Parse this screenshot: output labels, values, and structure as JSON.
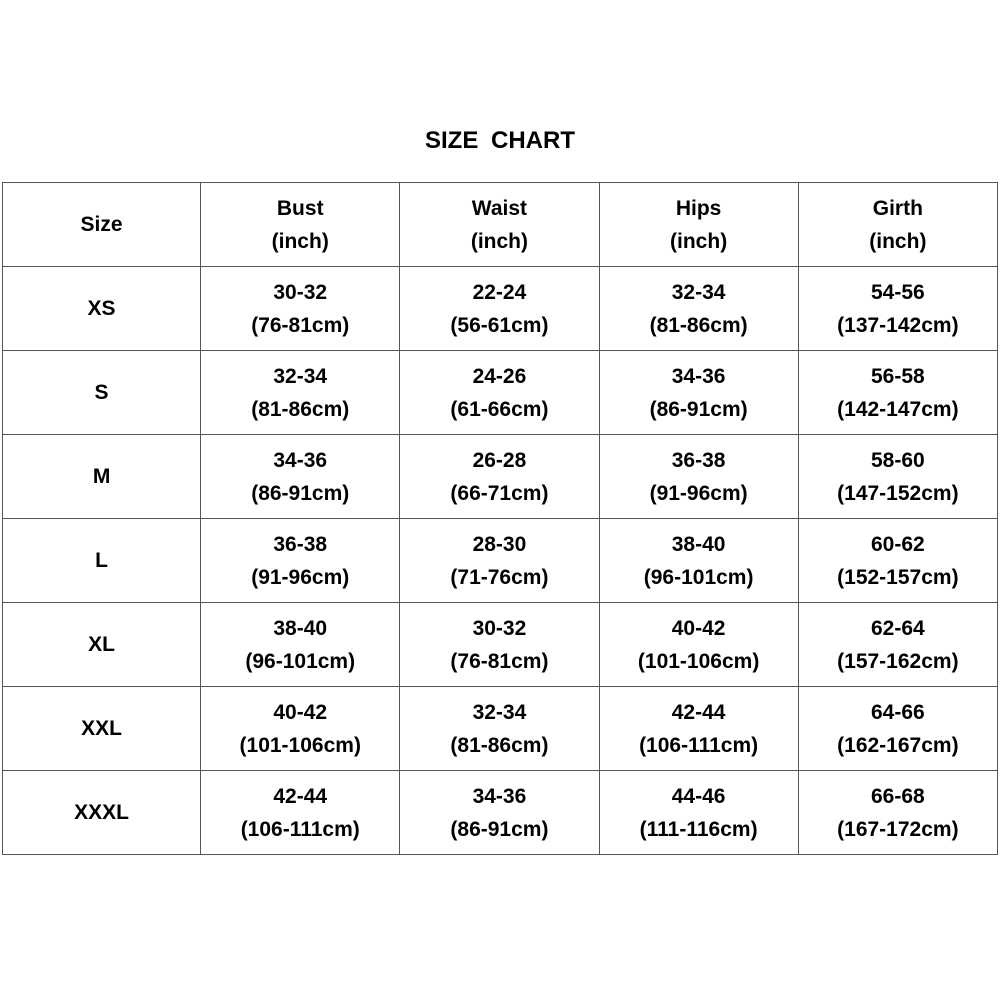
{
  "title": "SIZE  CHART",
  "headers": [
    {
      "name": "Size",
      "unit": ""
    },
    {
      "name": "Bust",
      "unit": "(inch)"
    },
    {
      "name": "Waist",
      "unit": "(inch)"
    },
    {
      "name": "Hips",
      "unit": "(inch)"
    },
    {
      "name": "Girth",
      "unit": "(inch)"
    }
  ],
  "rows": [
    {
      "size": "XS",
      "cells": [
        [
          "30-32",
          "(76-81cm)"
        ],
        [
          "22-24",
          "(56-61cm)"
        ],
        [
          "32-34",
          "(81-86cm)"
        ],
        [
          "54-56",
          "(137-142cm)"
        ]
      ]
    },
    {
      "size": "S",
      "cells": [
        [
          "32-34",
          "(81-86cm)"
        ],
        [
          "24-26",
          "(61-66cm)"
        ],
        [
          "34-36",
          "(86-91cm)"
        ],
        [
          "56-58",
          "(142-147cm)"
        ]
      ]
    },
    {
      "size": "M",
      "cells": [
        [
          "34-36",
          "(86-91cm)"
        ],
        [
          "26-28",
          "(66-71cm)"
        ],
        [
          "36-38",
          "(91-96cm)"
        ],
        [
          "58-60",
          "(147-152cm)"
        ]
      ]
    },
    {
      "size": "L",
      "cells": [
        [
          "36-38",
          "(91-96cm)"
        ],
        [
          "28-30",
          "(71-76cm)"
        ],
        [
          "38-40",
          "(96-101cm)"
        ],
        [
          "60-62",
          "(152-157cm)"
        ]
      ]
    },
    {
      "size": "XL",
      "cells": [
        [
          "38-40",
          "(96-101cm)"
        ],
        [
          "30-32",
          "(76-81cm)"
        ],
        [
          "40-42",
          "(101-106cm)"
        ],
        [
          "62-64",
          "(157-162cm)"
        ]
      ]
    },
    {
      "size": "XXL",
      "cells": [
        [
          "40-42",
          "(101-106cm)"
        ],
        [
          "32-34",
          "(81-86cm)"
        ],
        [
          "42-44",
          "(106-111cm)"
        ],
        [
          "64-66",
          "(162-167cm)"
        ]
      ]
    },
    {
      "size": "XXXL",
      "cells": [
        [
          "42-44",
          "(106-111cm)"
        ],
        [
          "34-36",
          "(86-91cm)"
        ],
        [
          "44-46",
          "(111-116cm)"
        ],
        [
          "66-68",
          "(167-172cm)"
        ]
      ]
    }
  ]
}
